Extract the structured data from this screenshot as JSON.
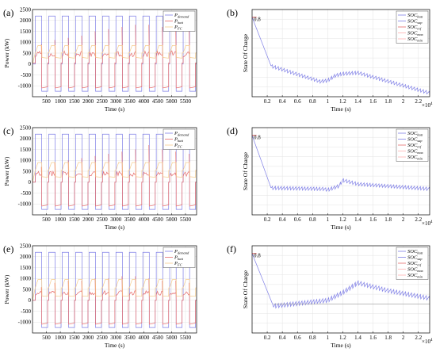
{
  "chart_data": [
    {
      "type": "line",
      "panel_label": "(a)",
      "xlabel": "Time (s)",
      "ylabel": "Power (kW)",
      "xlim": [
        0,
        5900
      ],
      "ylim": [
        -1500,
        2500
      ],
      "x_ticks": [
        500,
        1000,
        1500,
        2000,
        2500,
        3000,
        3500,
        4000,
        4500,
        5000,
        5500
      ],
      "y_ticks": [
        -1000,
        -500,
        0,
        500,
        1000,
        1500,
        2000,
        2500
      ],
      "legend": {
        "position": "top-right",
        "entries": [
          {
            "main": "P",
            "sub": "demand"
          },
          {
            "main": "P",
            "sub": "batt"
          },
          {
            "main": "P",
            "sub": "FC"
          }
        ]
      },
      "series": [
        {
          "color": "#7f7fe6",
          "profile": "demand",
          "high": 2200,
          "low": -1250,
          "base": 0
        },
        {
          "color": "#e66a6a",
          "profile": "batt",
          "high": 1100,
          "low": -1100,
          "base": 50,
          "spike_peaks": [
            900,
            1100,
            1200,
            1300,
            1500,
            1600,
            1700,
            1800,
            1800,
            1700,
            1600,
            1500
          ]
        },
        {
          "color": "#f6cc8c",
          "profile": "fc",
          "level": 850,
          "dip": 300
        }
      ],
      "cycle_count": 12
    },
    {
      "type": "line",
      "panel_label": "(b)",
      "xlabel": "Time (s)",
      "ylabel": "State Of Charge",
      "xlim": [
        0,
        23500
      ],
      "ylim": [
        0,
        0.9
      ],
      "x_ticks": [
        2000,
        4000,
        6000,
        8000,
        10000,
        12000,
        14000,
        16000,
        18000,
        20000,
        22000
      ],
      "x_tick_labels": [
        "0.2",
        "0.4",
        "0.6",
        "0.8",
        "1",
        "1.2",
        "1.4",
        "1.6",
        "1.8",
        "2",
        "2.2"
      ],
      "x_exponent": "×10",
      "x_exponent_power": "4",
      "y_tick_labels_visible": [
        "0.8"
      ],
      "legend": {
        "position": "top-right",
        "entries": [
          {
            "main": "SOC",
            "sub": "batt"
          },
          {
            "main": "SOC",
            "sub": "sup"
          },
          {
            "main": "SOC",
            "sub": "ref"
          },
          {
            "main": "SOC",
            "sub": "max"
          },
          {
            "main": "SOC",
            "sub": "min"
          }
        ]
      },
      "soc_path": [
        [
          0,
          0.82
        ],
        [
          2500,
          0.32
        ],
        [
          9000,
          0.16
        ],
        [
          10000,
          0.17
        ],
        [
          11000,
          0.22
        ],
        [
          12000,
          0.24
        ],
        [
          14000,
          0.25
        ],
        [
          23500,
          0.04
        ]
      ],
      "soc_ripple": 0.04,
      "colors": {
        "batt": "#7f7fe6",
        "ref": "#e66a6a"
      }
    },
    {
      "type": "line",
      "panel_label": "(c)",
      "xlabel": "Time (s)",
      "ylabel": "Power (kW)",
      "xlim": [
        0,
        5900
      ],
      "ylim": [
        -1500,
        2500
      ],
      "x_ticks": [
        500,
        1000,
        1500,
        2000,
        2500,
        3000,
        3500,
        4000,
        4500,
        5000,
        5500
      ],
      "y_ticks": [
        -1000,
        -500,
        0,
        500,
        1000,
        1500,
        2000,
        2500
      ],
      "legend": {
        "position": "top-right",
        "entries": [
          {
            "main": "P",
            "sub": "demand"
          },
          {
            "main": "P",
            "sub": "batt"
          },
          {
            "main": "P",
            "sub": "FC"
          }
        ]
      },
      "series": [
        {
          "color": "#7f7fe6",
          "profile": "demand",
          "high": 2200,
          "low": -1250,
          "base": 0
        },
        {
          "color": "#e66a6a",
          "profile": "batt",
          "high": 900,
          "low": -1100,
          "base": 0,
          "spike_peaks": [
            700,
            900,
            1000,
            1100,
            1200,
            1300,
            1400,
            1500,
            1700,
            1500,
            1400,
            1300
          ]
        },
        {
          "color": "#f6cc8c",
          "profile": "fc",
          "level": 900,
          "dip": 250
        }
      ],
      "cycle_count": 12
    },
    {
      "type": "line",
      "panel_label": "(d)",
      "xlabel": "Time (s)",
      "ylabel": "State Of Charge",
      "xlim": [
        0,
        23500
      ],
      "ylim": [
        0,
        0.9
      ],
      "x_ticks": [
        2000,
        4000,
        6000,
        8000,
        10000,
        12000,
        14000,
        16000,
        18000,
        20000,
        22000
      ],
      "x_tick_labels": [
        "0.2",
        "0.4",
        "0.6",
        "0.8",
        "1",
        "1.2",
        "1.4",
        "1.6",
        "1.8",
        "2",
        "2.2"
      ],
      "x_exponent": "×10",
      "x_exponent_power": "4",
      "y_tick_labels_visible": [
        "0.8"
      ],
      "legend": {
        "position": "top-right",
        "entries": [
          {
            "main": "SOC",
            "sub": "batt"
          },
          {
            "main": "SOC",
            "sub": "sup"
          },
          {
            "main": "SOC",
            "sub": "ref"
          },
          {
            "main": "SOC",
            "sub": "max"
          },
          {
            "main": "SOC",
            "sub": "min"
          }
        ]
      },
      "soc_path": [
        [
          0,
          0.82
        ],
        [
          2500,
          0.28
        ],
        [
          9500,
          0.27
        ],
        [
          10000,
          0.26
        ],
        [
          11500,
          0.3
        ],
        [
          12000,
          0.36
        ],
        [
          14000,
          0.32
        ],
        [
          23500,
          0.27
        ]
      ],
      "soc_ripple": 0.04,
      "colors": {
        "batt": "#7f7fe6",
        "ref": "#e66a6a"
      }
    },
    {
      "type": "line",
      "panel_label": "(e)",
      "xlabel": "Time (s)",
      "ylabel": "Power (kW)",
      "xlim": [
        0,
        5900
      ],
      "ylim": [
        -1500,
        2500
      ],
      "x_ticks": [
        500,
        1000,
        1500,
        2000,
        2500,
        3000,
        3500,
        4000,
        4500,
        5000,
        5500
      ],
      "y_ticks": [
        -1000,
        -500,
        0,
        500,
        1000,
        1500,
        2000,
        2500
      ],
      "legend": {
        "position": "top-right",
        "entries": [
          {
            "main": "P",
            "sub": "demand"
          },
          {
            "main": "P",
            "sub": "batt"
          },
          {
            "main": "P",
            "sub": "FC"
          }
        ]
      },
      "series": [
        {
          "color": "#7f7fe6",
          "profile": "demand",
          "high": 2200,
          "low": -1250,
          "base": 0
        },
        {
          "color": "#e66a6a",
          "profile": "batt",
          "high": 800,
          "low": -1100,
          "base": 0,
          "spike_peaks": [
            600,
            800,
            900,
            900,
            1000,
            1000,
            1100,
            1100,
            1000,
            900,
            900,
            800
          ]
        },
        {
          "color": "#f6cc8c",
          "profile": "fc",
          "level": 950,
          "dip": 200
        }
      ],
      "cycle_count": 12
    },
    {
      "type": "line",
      "panel_label": "(f)",
      "xlabel": "Time (s)",
      "ylabel": "State Of Charge",
      "xlim": [
        0,
        23500
      ],
      "ylim": [
        0,
        0.9
      ],
      "x_ticks": [
        2000,
        4000,
        6000,
        8000,
        10000,
        12000,
        14000,
        16000,
        18000,
        20000,
        22000
      ],
      "x_tick_labels": [
        "0.2",
        "0.4",
        "0.6",
        "0.8",
        "1",
        "1.2",
        "1.4",
        "1.6",
        "1.8",
        "2",
        "2.2"
      ],
      "x_exponent": "×10",
      "x_exponent_power": "4",
      "y_tick_labels_visible": [
        "0.8"
      ],
      "legend": {
        "position": "top-right",
        "entries": [
          {
            "main": "SOC",
            "sub": "batt"
          },
          {
            "main": "SOC",
            "sub": "sup"
          },
          {
            "main": "SOC",
            "sub": "ref"
          },
          {
            "main": "SOC",
            "sub": "max"
          },
          {
            "main": "SOC",
            "sub": "min"
          }
        ]
      },
      "soc_path": [
        [
          0,
          0.82
        ],
        [
          2800,
          0.28
        ],
        [
          10000,
          0.34
        ],
        [
          12000,
          0.42
        ],
        [
          14000,
          0.52
        ],
        [
          18000,
          0.44
        ],
        [
          23500,
          0.36
        ]
      ],
      "soc_ripple": 0.05,
      "ref_line": 0.3,
      "colors": {
        "batt": "#7f7fe6",
        "ref": "#e66a6a"
      }
    }
  ]
}
